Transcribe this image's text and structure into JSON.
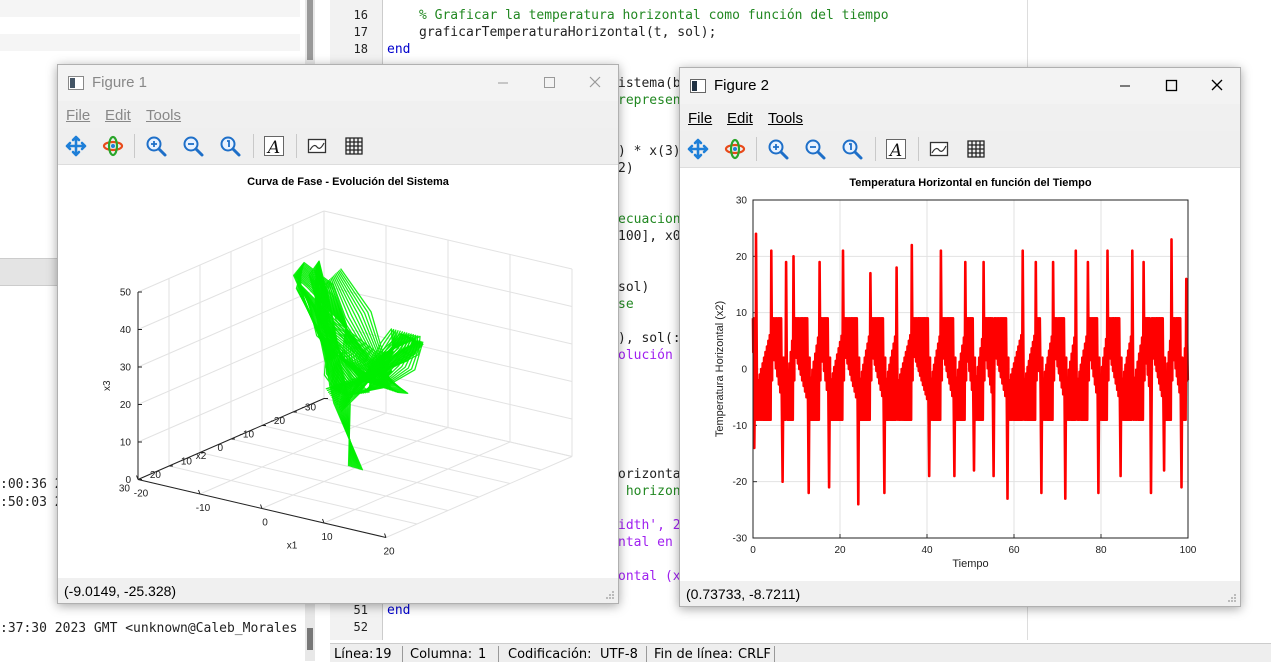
{
  "left_log": {
    "lines": [
      ":00:36 2",
      ":50:03 2",
      ":37:30 2023 GMT <unknown@Caleb_Morales"
    ]
  },
  "editor": {
    "line_numbers": [
      "16",
      "17",
      "18",
      "51",
      "52"
    ],
    "top_lines": [
      {
        "comment": "% Graficar la temperatura horizontal como función del tiempo"
      },
      {
        "code": "graficarTemperaturaHorizontal(t, sol);"
      },
      {
        "keyword": "end"
      }
    ],
    "mid_fragments": [
      "istema(b",
      "represen",
      ") * x(3)",
      "2)",
      "ecuacion",
      "100], x0",
      "sol)",
      "se",
      "), sol(:",
      "olución ",
      "orizonta",
      " horizon",
      "idth', 2",
      "ntal en ",
      "ontal (x"
    ],
    "bottom_keyword": "end"
  },
  "statusbar": {
    "line_label": "Línea:",
    "line_value": "19",
    "col_label": "Columna:",
    "col_value": "1",
    "enc_label": "Codificación:",
    "enc_value": "UTF-8",
    "eol_label": "Fin de línea:",
    "eol_value": "CRLF"
  },
  "figure1": {
    "title": "Figure 1",
    "menu": [
      "File",
      "Edit",
      "Tools"
    ],
    "coords": "(-9.0149, -25.328)",
    "active": false,
    "chart_data": {
      "type": "line",
      "projection": "3d",
      "title": "Curva de Fase - Evolución del Sistema",
      "xlabel": "x1",
      "ylabel": "x2",
      "zlabel": "x3",
      "xticks": [
        "-20",
        "-10",
        "0",
        "10",
        "20"
      ],
      "yticks": [
        "-30",
        "-20",
        "-10",
        "0",
        "10",
        "20",
        "30"
      ],
      "zticks": [
        "0",
        "10",
        "20",
        "30",
        "40",
        "50"
      ],
      "xlim": [
        -20,
        20
      ],
      "ylim": [
        -30,
        30
      ],
      "zlim": [
        0,
        50
      ],
      "grid": true,
      "color": "#00ee00",
      "series": [
        {
          "x": [
            0.0,
            -6.0,
            -12.0,
            -14.5,
            -12.0,
            -6.0,
            -1.0,
            1.0,
            -2.0,
            -6.0,
            -10.0,
            -15.0,
            -16.0,
            -12.0,
            -6.0,
            -0.5,
            5.0,
            11.0,
            15.0,
            16.0,
            13.0,
            8.0,
            4.0,
            1.0,
            6.0,
            12.0,
            15.5,
            15.0,
            10.0,
            4.0,
            0.0,
            -4.0,
            -10.0,
            -14.0,
            -15.0,
            -10.0,
            -4.0,
            1.0,
            1.5,
            -3.0,
            -8.0,
            -12.5
          ],
          "y": [
            0.0,
            -8.0,
            -15.0,
            -14.0,
            -7.0,
            -3.0,
            -5.0,
            -9.0,
            -10.0,
            -13.0,
            -17.0,
            -19.0,
            -14.0,
            -7.0,
            -2.0,
            3.0,
            9.0,
            15.0,
            18.0,
            14.0,
            7.0,
            4.0,
            6.0,
            9.0,
            13.0,
            18.0,
            20.0,
            14.0,
            6.0,
            3.0,
            1.0,
            -3.0,
            -10.0,
            -16.0,
            -18.0,
            -10.0,
            -4.0,
            -6.0,
            -10.0,
            -12.0,
            -15.0,
            -18.0
          ],
          "z": [
            0.0,
            12.0,
            25.0,
            35.0,
            40.0,
            34.0,
            27.0,
            22.0,
            18.0,
            21.0,
            28.0,
            36.0,
            42.0,
            38.0,
            30.0,
            24.0,
            25.0,
            32.0,
            40.0,
            46.0,
            40.0,
            32.0,
            26.0,
            22.0,
            28.0,
            36.0,
            44.0,
            47.0,
            38.0,
            28.0,
            23.0,
            24.0,
            30.0,
            38.0,
            42.0,
            34.0,
            26.0,
            20.0,
            19.0,
            24.0,
            32.0,
            40.0
          ]
        }
      ]
    }
  },
  "figure2": {
    "title": "Figure 2",
    "menu": [
      "File",
      "Edit",
      "Tools"
    ],
    "coords": "(0.73733, -8.7211)",
    "active": true,
    "chart_data": {
      "type": "line",
      "title": "Temperatura Horizontal en función del Tiempo",
      "xlabel": "Tiempo",
      "ylabel": "Temperatura Horizontal (x2)",
      "xlim": [
        0,
        100
      ],
      "ylim": [
        -30,
        30
      ],
      "xticks": [
        0,
        20,
        40,
        60,
        80,
        100
      ],
      "yticks": [
        -30,
        -20,
        -10,
        0,
        10,
        20,
        30
      ],
      "grid": true,
      "color": "#ff0000",
      "series": [
        {
          "name": "",
          "spikes": [
            {
              "t": 0.3,
              "y": -14,
              "dir": "down"
            },
            {
              "t": 0.7,
              "y": 24,
              "dir": "up"
            },
            {
              "t": 4.2,
              "y": 21,
              "dir": "up"
            },
            {
              "t": 6.8,
              "y": -20,
              "dir": "down"
            },
            {
              "t": 7.6,
              "y": 19,
              "dir": "up"
            },
            {
              "t": 9.3,
              "y": 20,
              "dir": "up"
            },
            {
              "t": 12.8,
              "y": -22,
              "dir": "down"
            },
            {
              "t": 15.3,
              "y": 19,
              "dir": "up"
            },
            {
              "t": 17.5,
              "y": -21,
              "dir": "down"
            },
            {
              "t": 20.7,
              "y": 21,
              "dir": "up"
            },
            {
              "t": 24.2,
              "y": -24,
              "dir": "down"
            },
            {
              "t": 27.0,
              "y": 17,
              "dir": "up"
            },
            {
              "t": 30.2,
              "y": -22,
              "dir": "down"
            },
            {
              "t": 33.0,
              "y": 18,
              "dir": "up"
            },
            {
              "t": 36.5,
              "y": 22,
              "dir": "up"
            },
            {
              "t": 40.5,
              "y": -19,
              "dir": "down"
            },
            {
              "t": 43.2,
              "y": 21,
              "dir": "up"
            },
            {
              "t": 46.3,
              "y": -19,
              "dir": "down"
            },
            {
              "t": 48.8,
              "y": 19,
              "dir": "up"
            },
            {
              "t": 50.8,
              "y": -18,
              "dir": "down"
            },
            {
              "t": 53.0,
              "y": 19,
              "dir": "up"
            },
            {
              "t": 55.3,
              "y": -19,
              "dir": "down"
            },
            {
              "t": 58.5,
              "y": -23,
              "dir": "down"
            },
            {
              "t": 62.0,
              "y": 21,
              "dir": "up"
            },
            {
              "t": 65.0,
              "y": 19,
              "dir": "up"
            },
            {
              "t": 66.3,
              "y": -22,
              "dir": "down"
            },
            {
              "t": 69.0,
              "y": 19,
              "dir": "up"
            },
            {
              "t": 71.8,
              "y": -23,
              "dir": "down"
            },
            {
              "t": 74.2,
              "y": 21,
              "dir": "up"
            },
            {
              "t": 77.0,
              "y": 19,
              "dir": "up"
            },
            {
              "t": 79.4,
              "y": -22,
              "dir": "down"
            },
            {
              "t": 81.5,
              "y": 21,
              "dir": "up"
            },
            {
              "t": 84.5,
              "y": -19,
              "dir": "down"
            },
            {
              "t": 87.2,
              "y": 21,
              "dir": "up"
            },
            {
              "t": 89.8,
              "y": 19,
              "dir": "up"
            },
            {
              "t": 91.5,
              "y": -22,
              "dir": "down"
            },
            {
              "t": 94.5,
              "y": -18,
              "dir": "down"
            },
            {
              "t": 96.2,
              "y": 23,
              "dir": "up"
            },
            {
              "t": 98.5,
              "y": -21,
              "dir": "down"
            },
            {
              "t": 99.6,
              "y": 16,
              "dir": "up"
            }
          ]
        }
      ]
    }
  },
  "icons": [
    "pan-icon",
    "rotate-icon",
    "zoom-in-icon",
    "zoom-out-icon",
    "zoom-reset-icon",
    "text-icon",
    "axes-icon",
    "grid-icon"
  ]
}
